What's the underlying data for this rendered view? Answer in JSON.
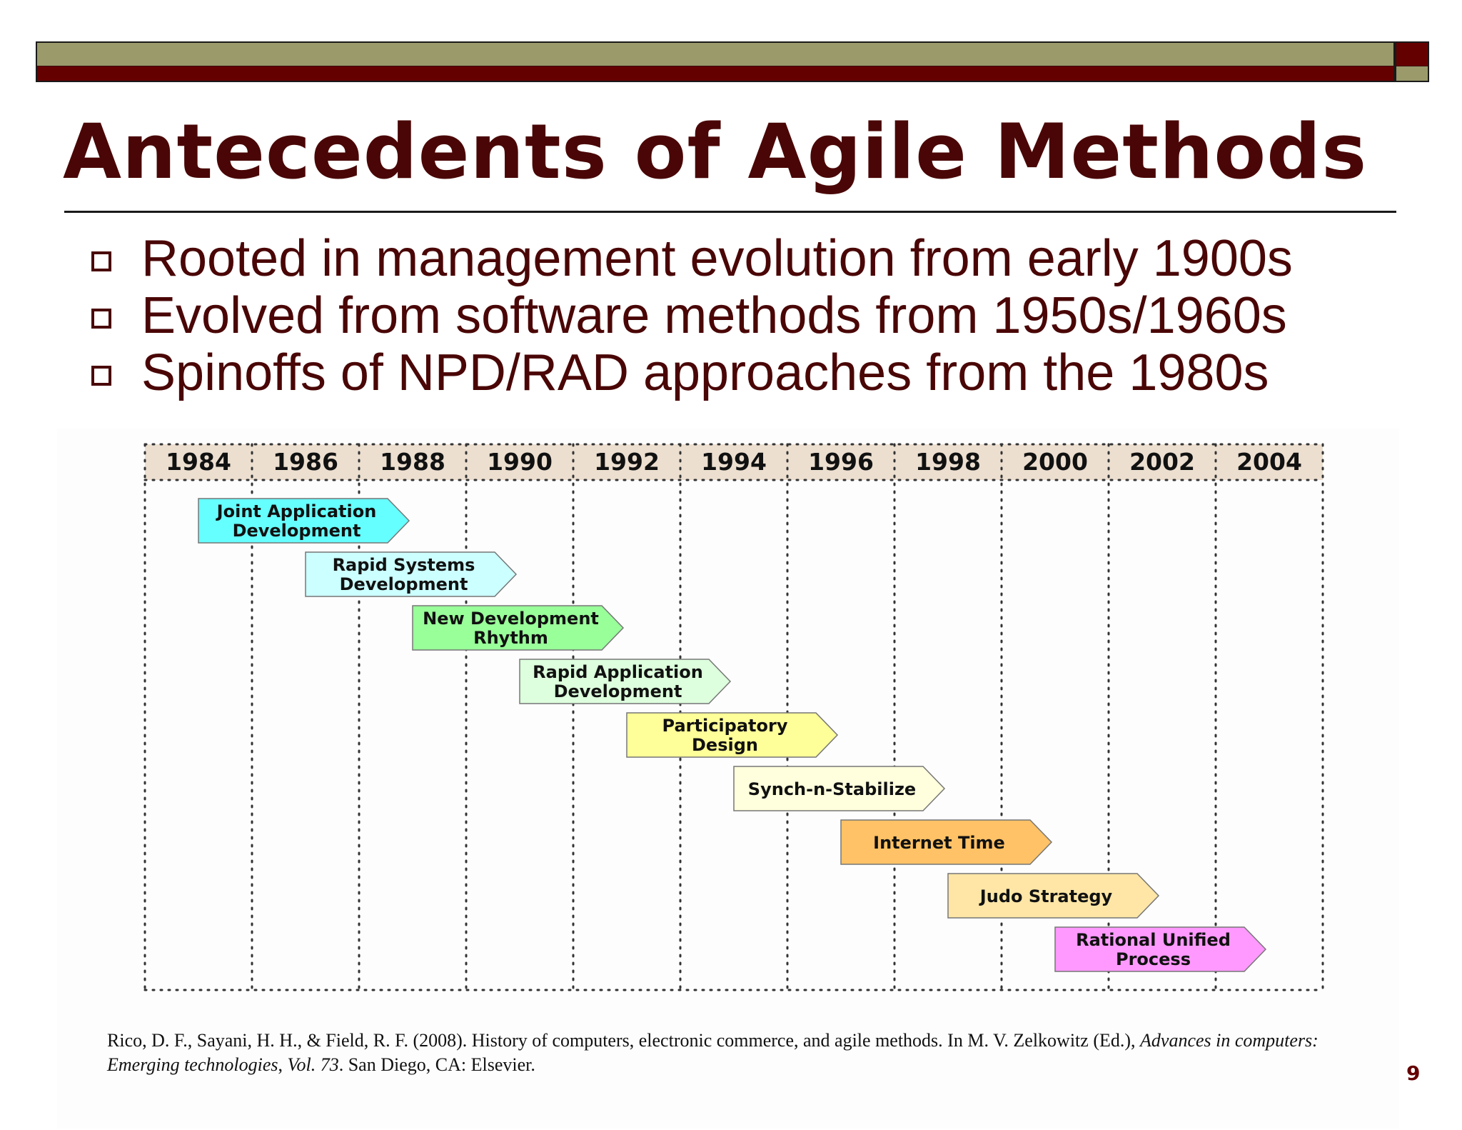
{
  "title": "Antecedents of Agile Methods",
  "bullets": [
    "Rooted in management evolution from early 1900s",
    "Evolved from software methods from 1950s/1960s",
    "Spinoffs of NPD/RAD approaches from the 1980s"
  ],
  "timeline": {
    "years": [
      "1984",
      "1986",
      "1988",
      "1990",
      "1992",
      "1994",
      "1996",
      "1998",
      "2000",
      "2002",
      "2004"
    ],
    "methods": [
      {
        "lines": [
          "Joint Application",
          "Development"
        ],
        "start_year": 1984,
        "color": "#66ffff"
      },
      {
        "lines": [
          "Rapid Systems",
          "Development"
        ],
        "start_year": 1986,
        "color": "#ccffff"
      },
      {
        "lines": [
          "New Development",
          "Rhythm"
        ],
        "start_year": 1988,
        "color": "#99ff99"
      },
      {
        "lines": [
          "Rapid Application",
          "Development"
        ],
        "start_year": 1990,
        "color": "#ddffdd"
      },
      {
        "lines": [
          "Participatory",
          "Design"
        ],
        "start_year": 1992,
        "color": "#ffff99"
      },
      {
        "lines": [
          "Synch-n-Stabilize"
        ],
        "start_year": 1994,
        "color": "#ffffdd"
      },
      {
        "lines": [
          "Internet Time"
        ],
        "start_year": 1996,
        "color": "#ffc266"
      },
      {
        "lines": [
          "Judo Strategy"
        ],
        "start_year": 1998,
        "color": "#ffe6a6"
      },
      {
        "lines": [
          "Rational Unified",
          "Process"
        ],
        "start_year": 2000,
        "color": "#ff99ff"
      }
    ]
  },
  "citation": {
    "part1": "Rico, D. F., Sayani, H. H., & Field, R. F. (2008). History of computers, electronic commerce, and agile methods. In M. V. Zelkowitz (Ed.), ",
    "book": "Advances in computers: Emerging technologies",
    "sep": ", ",
    "vol": "Vol. 73",
    "part2": ". San Diego, CA: Elsevier."
  },
  "page_number": "9",
  "colors": {
    "maroon": "#650000",
    "olive": "#9a9a6b",
    "title_text": "#4a0606",
    "year_header_bg": "#ecdfd0"
  }
}
